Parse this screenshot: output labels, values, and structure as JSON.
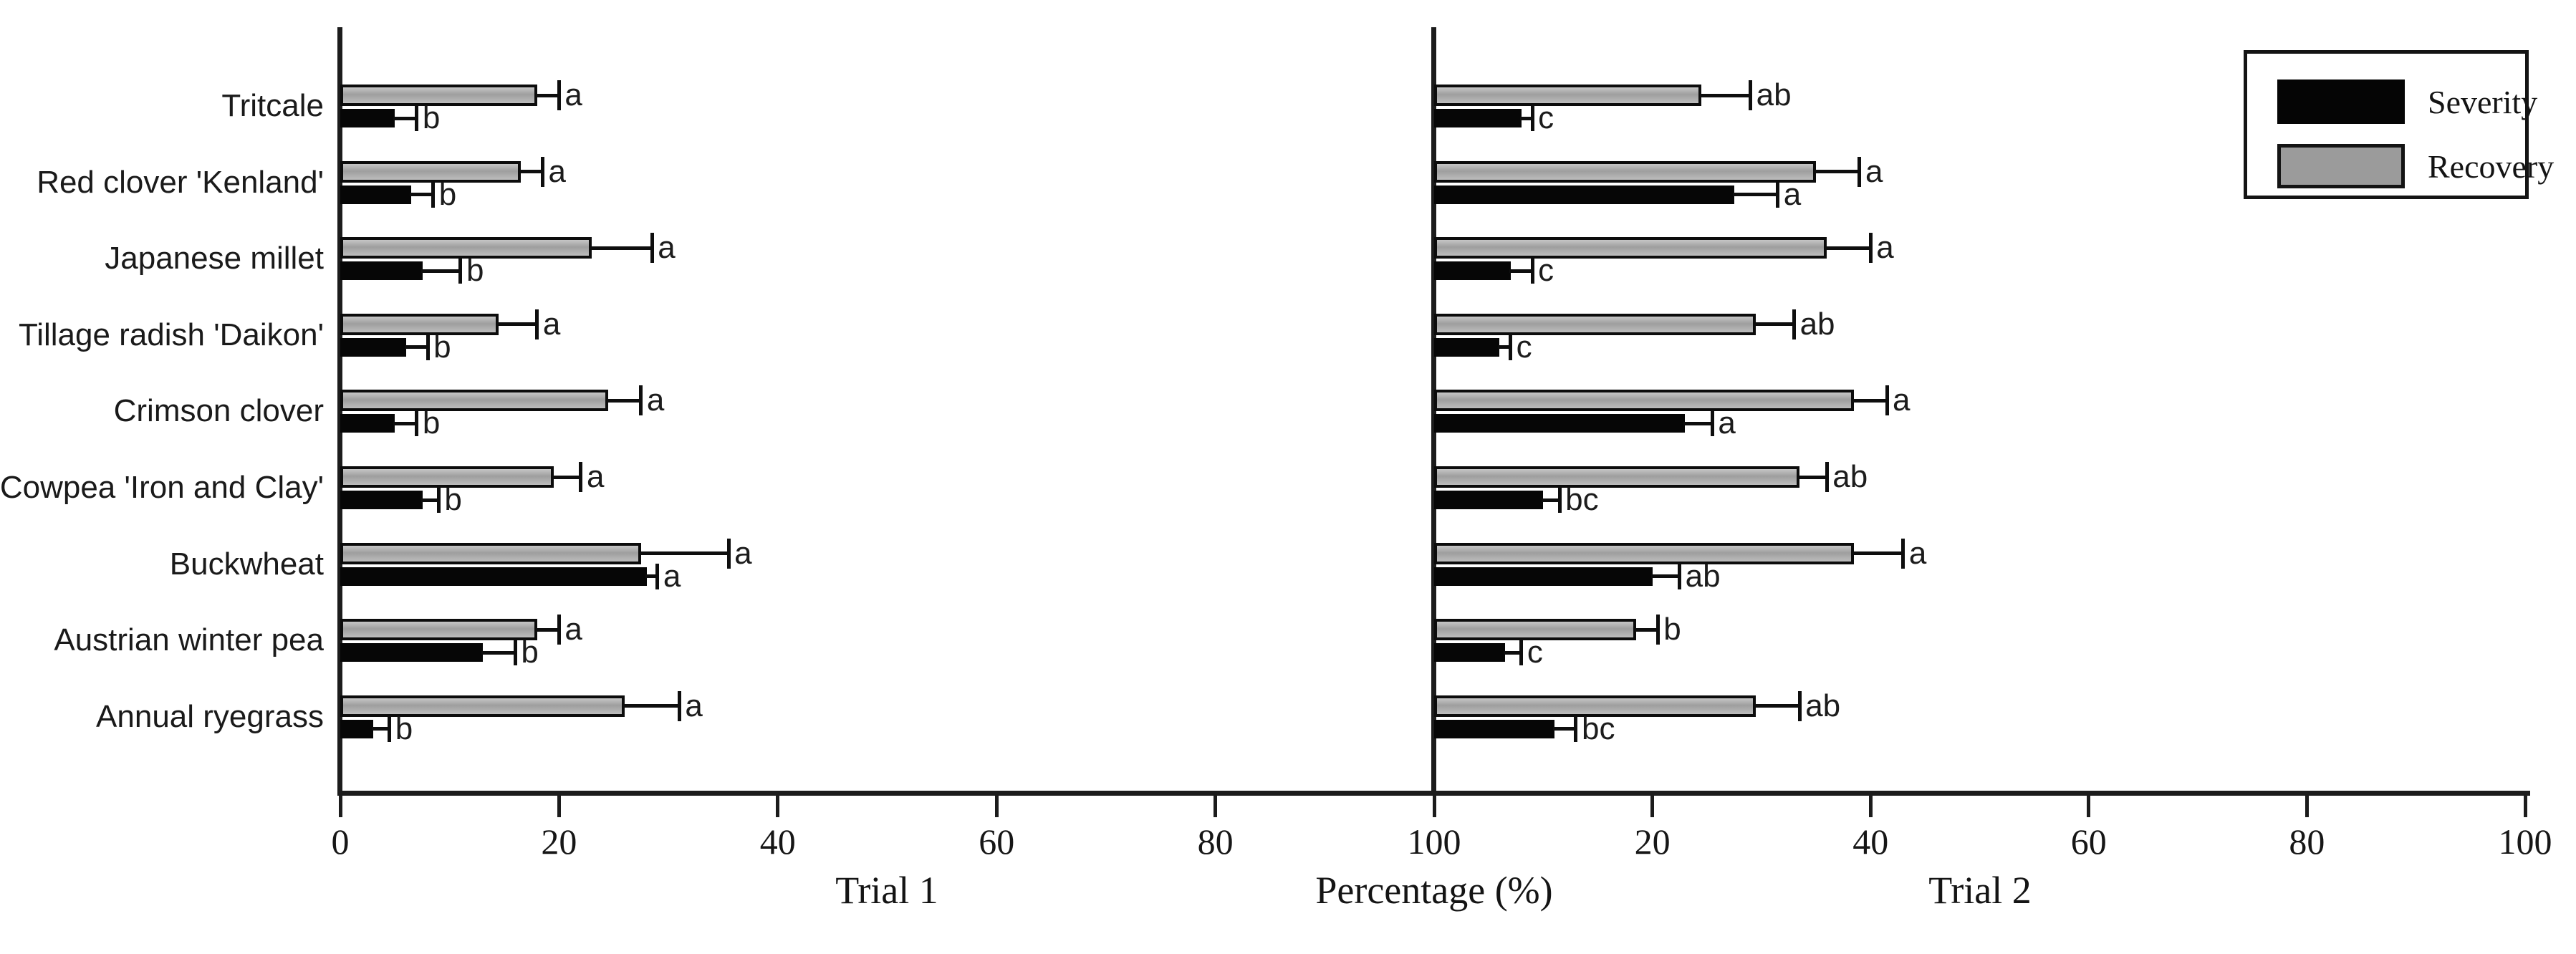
{
  "chart_data": {
    "type": "bar",
    "orientation": "horizontal",
    "title": "",
    "xlabel": "Percentage (%)",
    "xlim": [
      0,
      100
    ],
    "xticks": [
      0,
      20,
      40,
      60,
      80,
      100
    ],
    "grid": false,
    "legend": {
      "position": "top-right",
      "entries": [
        {
          "label": "Severity",
          "color": "#050505"
        },
        {
          "label": "Recovery",
          "color": "#9b9b9b"
        }
      ]
    },
    "categories": [
      "Tritcale",
      "Red clover 'Kenland'",
      "Japanese millet",
      "Tillage radish 'Daikon'",
      "Crimson clover",
      "Cowpea 'Iron and Clay'",
      "Buckwheat",
      "Austrian winter pea",
      "Annual ryegrass"
    ],
    "panels": [
      {
        "title": "Trial 1",
        "series": [
          {
            "name": "Severity",
            "color": "#050505",
            "values": [
              5,
              6.5,
              7.5,
              6,
              5,
              7.5,
              28,
              13,
              3
            ],
            "errors_plus": [
              2,
              2,
              3.5,
              2,
              2,
              1.5,
              1,
              3,
              1.5
            ],
            "letters": [
              "b",
              "b",
              "b",
              "b",
              "b",
              "b",
              "a",
              "b",
              "b"
            ]
          },
          {
            "name": "Recovery",
            "color": "#9b9b9b",
            "values": [
              18,
              16.5,
              23,
              14.5,
              24.5,
              19.5,
              27.5,
              18,
              26
            ],
            "errors_plus": [
              2,
              2,
              5.5,
              3.5,
              3,
              2.5,
              8,
              2,
              5
            ],
            "letters": [
              "a",
              "a",
              "a",
              "a",
              "a",
              "a",
              "a",
              "a",
              "a"
            ]
          }
        ]
      },
      {
        "title": "Trial 2",
        "series": [
          {
            "name": "Severity",
            "color": "#050505",
            "values": [
              8,
              27.5,
              7,
              6,
              23,
              10,
              20,
              6.5,
              11
            ],
            "errors_plus": [
              1,
              4,
              2,
              1,
              2.5,
              1.5,
              2.5,
              1.5,
              2
            ],
            "letters": [
              "c",
              "a",
              "c",
              "c",
              "a",
              "bc",
              "ab",
              "c",
              "bc"
            ]
          },
          {
            "name": "Recovery",
            "color": "#9b9b9b",
            "values": [
              24.5,
              35,
              36,
              29.5,
              38.5,
              33.5,
              38.5,
              18.5,
              29.5
            ],
            "errors_plus": [
              4.5,
              4,
              4,
              3.5,
              3,
              2.5,
              4.5,
              2,
              4
            ],
            "letters": [
              "ab",
              "a",
              "a",
              "ab",
              "a",
              "ab",
              "a",
              "b",
              "ab"
            ]
          }
        ]
      }
    ]
  }
}
